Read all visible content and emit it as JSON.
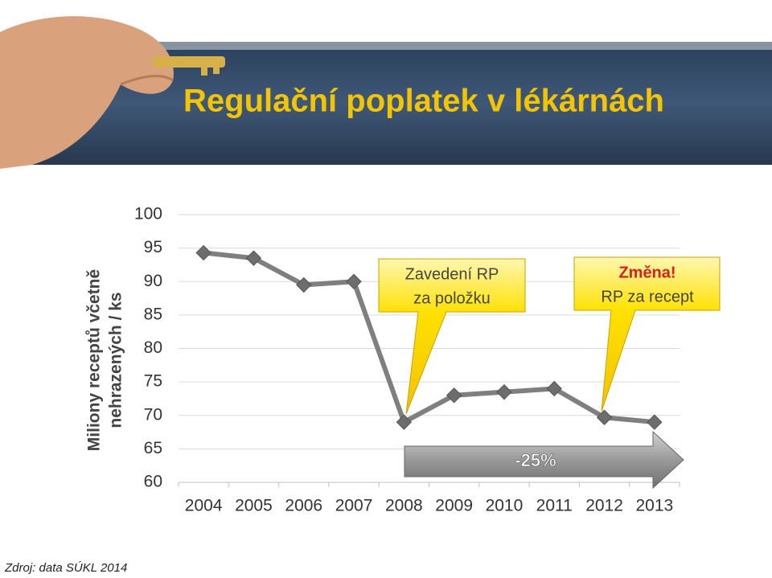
{
  "chart_data": {
    "type": "line",
    "title": "Regulační poplatek v lékárnách",
    "ylabel": [
      "Miliony receptů včetně",
      "nehrazených / ks"
    ],
    "categories": [
      "2004",
      "2005",
      "2006",
      "2007",
      "2008",
      "2009",
      "2010",
      "2011",
      "2012",
      "2013"
    ],
    "values": [
      94.3,
      93.5,
      89.5,
      90,
      69,
      73,
      73.5,
      74,
      69.7,
      69
    ],
    "color": "#7f7f7f",
    "ylim": [
      60,
      100
    ],
    "yticks": [
      60,
      65,
      70,
      75,
      80,
      85,
      90,
      95,
      100
    ],
    "grid": true,
    "annotations": [
      {
        "lines": [
          "Zavedení RP",
          "za položku"
        ]
      },
      {
        "lines": [
          "Změna!",
          "RP za recept"
        ]
      },
      {
        "lines": [
          "-25%"
        ]
      }
    ],
    "source": "Zdroj: data SÚKL 2014"
  }
}
